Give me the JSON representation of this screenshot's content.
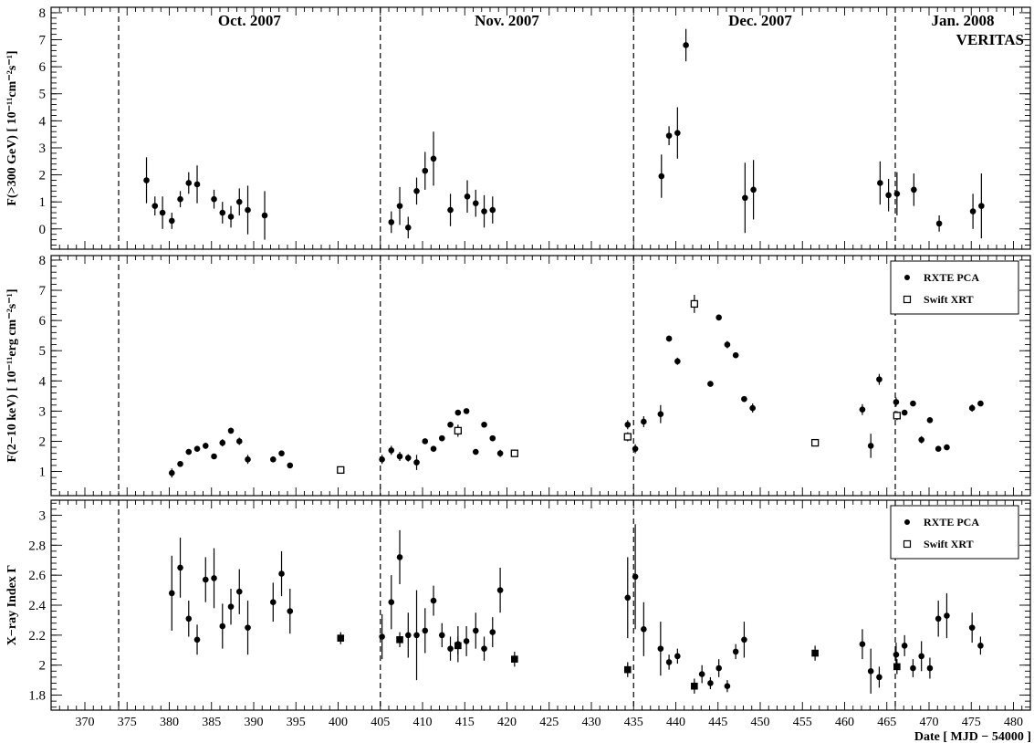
{
  "x_axis": {
    "label": "Date [ MJD − 54000 ]",
    "lim": [
      366,
      482
    ],
    "ticks": [
      370,
      375,
      380,
      385,
      390,
      395,
      400,
      405,
      410,
      415,
      420,
      425,
      430,
      435,
      440,
      445,
      450,
      455,
      460,
      465,
      470,
      475,
      480
    ]
  },
  "month_dividers": [
    374,
    405,
    435,
    466
  ],
  "month_labels": [
    {
      "text": "Oct. 2007",
      "x": 389.5
    },
    {
      "text": "Nov. 2007",
      "x": 420
    },
    {
      "text": "Dec. 2007",
      "x": 450
    },
    {
      "text": "Jan. 2008",
      "x": 474
    }
  ],
  "chart_data": [
    {
      "type": "scatter",
      "panel": "veritas",
      "ylabel": "F(>300 GeV) [ 10⁻¹¹cm⁻²s⁻¹]",
      "ylim": [
        -0.75,
        8.2
      ],
      "yticks": [
        0,
        1,
        2,
        3,
        4,
        5,
        6,
        7,
        8
      ],
      "annotation": "VERITAS",
      "series": [
        {
          "marker": "filled-circle",
          "points": [
            {
              "x": 377.3,
              "y": 1.8,
              "err": 0.85
            },
            {
              "x": 378.3,
              "y": 0.85,
              "err": 0.35
            },
            {
              "x": 379.2,
              "y": 0.6,
              "err": 0.6
            },
            {
              "x": 380.3,
              "y": 0.3,
              "err": 0.3
            },
            {
              "x": 381.3,
              "y": 1.1,
              "err": 0.3
            },
            {
              "x": 382.3,
              "y": 1.7,
              "err": 0.4
            },
            {
              "x": 383.3,
              "y": 1.65,
              "err": 0.7
            },
            {
              "x": 385.3,
              "y": 1.1,
              "err": 0.35
            },
            {
              "x": 386.3,
              "y": 0.6,
              "err": 0.4
            },
            {
              "x": 387.3,
              "y": 0.45,
              "err": 0.4
            },
            {
              "x": 388.3,
              "y": 1.0,
              "err": 0.5
            },
            {
              "x": 389.3,
              "y": 0.7,
              "err": 0.9
            },
            {
              "x": 391.3,
              "y": 0.5,
              "err": 0.9
            },
            {
              "x": 406.3,
              "y": 0.25,
              "err": 0.4
            },
            {
              "x": 407.3,
              "y": 0.85,
              "err": 0.7
            },
            {
              "x": 408.3,
              "y": 0.05,
              "err": 0.4
            },
            {
              "x": 409.3,
              "y": 1.4,
              "err": 0.5
            },
            {
              "x": 410.3,
              "y": 2.15,
              "err": 0.7
            },
            {
              "x": 411.3,
              "y": 2.6,
              "err": 1.0
            },
            {
              "x": 413.3,
              "y": 0.7,
              "err": 0.6
            },
            {
              "x": 415.3,
              "y": 1.2,
              "err": 0.6
            },
            {
              "x": 416.3,
              "y": 0.95,
              "err": 0.5
            },
            {
              "x": 417.3,
              "y": 0.65,
              "err": 0.6
            },
            {
              "x": 418.3,
              "y": 0.7,
              "err": 0.5
            },
            {
              "x": 438.3,
              "y": 1.95,
              "err": 0.8
            },
            {
              "x": 439.2,
              "y": 3.45,
              "err": 0.35
            },
            {
              "x": 440.2,
              "y": 3.55,
              "err": 0.95
            },
            {
              "x": 441.2,
              "y": 6.8,
              "err": 0.6
            },
            {
              "x": 448.2,
              "y": 1.15,
              "err": 1.3
            },
            {
              "x": 449.2,
              "y": 1.45,
              "err": 1.1
            },
            {
              "x": 464.2,
              "y": 1.7,
              "err": 0.8
            },
            {
              "x": 465.2,
              "y": 1.25,
              "err": 0.6
            },
            {
              "x": 466.2,
              "y": 1.3,
              "err": 0.8
            },
            {
              "x": 468.2,
              "y": 1.45,
              "err": 0.6
            },
            {
              "x": 471.2,
              "y": 0.2,
              "err": 0.3
            },
            {
              "x": 475.2,
              "y": 0.65,
              "err": 0.65
            },
            {
              "x": 476.2,
              "y": 0.85,
              "err": 1.2
            }
          ]
        }
      ]
    },
    {
      "type": "scatter",
      "panel": "xray-flux",
      "ylabel": "F(2−10 keV) [ 10⁻¹¹erg cm⁻²s⁻¹]",
      "ylim": [
        0.2,
        8.15
      ],
      "yticks": [
        1,
        2,
        3,
        4,
        5,
        6,
        7,
        8
      ],
      "legend": {
        "position": "top-right"
      },
      "series": [
        {
          "name": "RXTE PCA",
          "marker": "filled-circle",
          "points": [
            {
              "x": 380.3,
              "y": 0.95,
              "err": 0.15
            },
            {
              "x": 381.3,
              "y": 1.25,
              "err": 0.08
            },
            {
              "x": 382.3,
              "y": 1.65,
              "err": 0.08
            },
            {
              "x": 383.3,
              "y": 1.75,
              "err": 0.08
            },
            {
              "x": 384.3,
              "y": 1.85,
              "err": 0.1
            },
            {
              "x": 385.3,
              "y": 1.5,
              "err": 0.08
            },
            {
              "x": 386.3,
              "y": 1.95,
              "err": 0.12
            },
            {
              "x": 387.3,
              "y": 2.35,
              "err": 0.1
            },
            {
              "x": 388.3,
              "y": 2.0,
              "err": 0.12
            },
            {
              "x": 389.3,
              "y": 1.4,
              "err": 0.15
            },
            {
              "x": 392.3,
              "y": 1.4,
              "err": 0.08
            },
            {
              "x": 393.3,
              "y": 1.6,
              "err": 0.08
            },
            {
              "x": 394.3,
              "y": 1.2,
              "err": 0.08
            },
            {
              "x": 405.2,
              "y": 1.4,
              "err": 0.15
            },
            {
              "x": 406.3,
              "y": 1.7,
              "err": 0.15
            },
            {
              "x": 407.3,
              "y": 1.5,
              "err": 0.15
            },
            {
              "x": 408.3,
              "y": 1.45,
              "err": 0.12
            },
            {
              "x": 409.3,
              "y": 1.3,
              "err": 0.25
            },
            {
              "x": 410.3,
              "y": 2.0,
              "err": 0.08
            },
            {
              "x": 411.3,
              "y": 1.75,
              "err": 0.08
            },
            {
              "x": 412.3,
              "y": 2.1,
              "err": 0.08
            },
            {
              "x": 413.3,
              "y": 2.55,
              "err": 0.08
            },
            {
              "x": 414.2,
              "y": 2.95,
              "err": 0.08
            },
            {
              "x": 415.2,
              "y": 3.0,
              "err": 0.08
            },
            {
              "x": 416.3,
              "y": 1.65,
              "err": 0.08
            },
            {
              "x": 417.3,
              "y": 2.55,
              "err": 0.08
            },
            {
              "x": 418.3,
              "y": 2.1,
              "err": 0.08
            },
            {
              "x": 419.2,
              "y": 1.6,
              "err": 0.12
            },
            {
              "x": 434.3,
              "y": 2.55,
              "err": 0.15
            },
            {
              "x": 435.2,
              "y": 1.75,
              "err": 0.15
            },
            {
              "x": 436.2,
              "y": 2.65,
              "err": 0.18
            },
            {
              "x": 438.2,
              "y": 2.9,
              "err": 0.3
            },
            {
              "x": 439.2,
              "y": 5.4,
              "err": 0.1
            },
            {
              "x": 440.2,
              "y": 4.65,
              "err": 0.12
            },
            {
              "x": 444.1,
              "y": 3.9,
              "err": 0.08
            },
            {
              "x": 445.1,
              "y": 6.1,
              "err": 0.1
            },
            {
              "x": 446.1,
              "y": 5.2,
              "err": 0.12
            },
            {
              "x": 447.1,
              "y": 4.85,
              "err": 0.08
            },
            {
              "x": 448.1,
              "y": 3.4,
              "err": 0.08
            },
            {
              "x": 449.1,
              "y": 3.1,
              "err": 0.15
            },
            {
              "x": 462.1,
              "y": 3.05,
              "err": 0.18
            },
            {
              "x": 463.1,
              "y": 1.85,
              "err": 0.4
            },
            {
              "x": 464.1,
              "y": 4.05,
              "err": 0.18
            },
            {
              "x": 466.1,
              "y": 3.3,
              "err": 0.15
            },
            {
              "x": 467.1,
              "y": 2.95,
              "err": 0.08
            },
            {
              "x": 468.1,
              "y": 3.25,
              "err": 0.08
            },
            {
              "x": 469.1,
              "y": 2.05,
              "err": 0.12
            },
            {
              "x": 470.1,
              "y": 2.7,
              "err": 0.08
            },
            {
              "x": 471.1,
              "y": 1.75,
              "err": 0.08
            },
            {
              "x": 472.1,
              "y": 1.8,
              "err": 0.08
            },
            {
              "x": 475.1,
              "y": 3.1,
              "err": 0.12
            },
            {
              "x": 476.1,
              "y": 3.25,
              "err": 0.08
            }
          ]
        },
        {
          "name": "Swift XRT",
          "marker": "open-square",
          "points": [
            {
              "x": 400.3,
              "y": 1.05,
              "err": 0.08
            },
            {
              "x": 414.2,
              "y": 2.35,
              "err": 0.2
            },
            {
              "x": 420.9,
              "y": 1.6,
              "err": 0.08
            },
            {
              "x": 434.3,
              "y": 2.15,
              "err": 0.15
            },
            {
              "x": 442.2,
              "y": 6.55,
              "err": 0.3
            },
            {
              "x": 456.5,
              "y": 1.95,
              "err": 0.08
            },
            {
              "x": 466.2,
              "y": 2.85,
              "err": 0.15
            }
          ]
        }
      ]
    },
    {
      "type": "scatter",
      "panel": "xray-index",
      "ylabel": "X−ray Index Γ",
      "ylim": [
        1.7,
        3.1
      ],
      "yticks": [
        1.8,
        2,
        2.2,
        2.4,
        2.6,
        2.8,
        3
      ],
      "legend": {
        "position": "top-right"
      },
      "series": [
        {
          "name": "RXTE PCA",
          "marker": "filled-circle",
          "points": [
            {
              "x": 380.3,
              "y": 2.48,
              "err": 0.25
            },
            {
              "x": 381.3,
              "y": 2.65,
              "err": 0.2
            },
            {
              "x": 382.3,
              "y": 2.31,
              "err": 0.12
            },
            {
              "x": 383.3,
              "y": 2.17,
              "err": 0.1
            },
            {
              "x": 384.3,
              "y": 2.57,
              "err": 0.15
            },
            {
              "x": 385.3,
              "y": 2.58,
              "err": 0.2
            },
            {
              "x": 386.3,
              "y": 2.26,
              "err": 0.15
            },
            {
              "x": 387.3,
              "y": 2.39,
              "err": 0.12
            },
            {
              "x": 388.3,
              "y": 2.49,
              "err": 0.15
            },
            {
              "x": 389.3,
              "y": 2.25,
              "err": 0.18
            },
            {
              "x": 392.3,
              "y": 2.42,
              "err": 0.13
            },
            {
              "x": 393.3,
              "y": 2.61,
              "err": 0.15
            },
            {
              "x": 394.3,
              "y": 2.36,
              "err": 0.15
            },
            {
              "x": 405.2,
              "y": 2.19,
              "err": 0.15
            },
            {
              "x": 406.3,
              "y": 2.42,
              "err": 0.18
            },
            {
              "x": 407.3,
              "y": 2.72,
              "err": 0.18
            },
            {
              "x": 408.3,
              "y": 2.2,
              "err": 0.15
            },
            {
              "x": 409.3,
              "y": 2.2,
              "err": 0.3
            },
            {
              "x": 410.3,
              "y": 2.23,
              "err": 0.15
            },
            {
              "x": 411.3,
              "y": 2.43,
              "err": 0.1
            },
            {
              "x": 412.3,
              "y": 2.2,
              "err": 0.08
            },
            {
              "x": 413.3,
              "y": 2.11,
              "err": 0.08
            },
            {
              "x": 414.2,
              "y": 2.14,
              "err": 0.12
            },
            {
              "x": 415.2,
              "y": 2.16,
              "err": 0.1
            },
            {
              "x": 416.3,
              "y": 2.23,
              "err": 0.12
            },
            {
              "x": 417.3,
              "y": 2.11,
              "err": 0.08
            },
            {
              "x": 418.3,
              "y": 2.22,
              "err": 0.1
            },
            {
              "x": 419.2,
              "y": 2.5,
              "err": 0.15
            },
            {
              "x": 434.3,
              "y": 2.45,
              "err": 0.27
            },
            {
              "x": 435.2,
              "y": 2.59,
              "err": 0.35
            },
            {
              "x": 436.2,
              "y": 2.24,
              "err": 0.18
            },
            {
              "x": 438.2,
              "y": 2.11,
              "err": 0.18
            },
            {
              "x": 439.2,
              "y": 2.02,
              "err": 0.05
            },
            {
              "x": 440.2,
              "y": 2.06,
              "err": 0.05
            },
            {
              "x": 443.1,
              "y": 1.94,
              "err": 0.06
            },
            {
              "x": 444.1,
              "y": 1.88,
              "err": 0.04
            },
            {
              "x": 445.1,
              "y": 1.98,
              "err": 0.06
            },
            {
              "x": 446.1,
              "y": 1.86,
              "err": 0.04
            },
            {
              "x": 447.1,
              "y": 2.09,
              "err": 0.05
            },
            {
              "x": 448.1,
              "y": 2.17,
              "err": 0.12
            },
            {
              "x": 462.1,
              "y": 2.14,
              "err": 0.1
            },
            {
              "x": 463.1,
              "y": 1.96,
              "err": 0.15
            },
            {
              "x": 464.1,
              "y": 1.92,
              "err": 0.07
            },
            {
              "x": 466.1,
              "y": 2.07,
              "err": 0.08
            },
            {
              "x": 467.1,
              "y": 2.13,
              "err": 0.07
            },
            {
              "x": 468.1,
              "y": 1.98,
              "err": 0.06
            },
            {
              "x": 469.1,
              "y": 2.06,
              "err": 0.1
            },
            {
              "x": 470.1,
              "y": 1.98,
              "err": 0.07
            },
            {
              "x": 471.1,
              "y": 2.31,
              "err": 0.12
            },
            {
              "x": 472.1,
              "y": 2.33,
              "err": 0.15
            },
            {
              "x": 475.1,
              "y": 2.25,
              "err": 0.1
            },
            {
              "x": 476.1,
              "y": 2.13,
              "err": 0.06
            }
          ]
        },
        {
          "name": "Swift XRT",
          "marker": "filled-square",
          "points": [
            {
              "x": 400.3,
              "y": 2.18,
              "err": 0.04
            },
            {
              "x": 407.3,
              "y": 2.17,
              "err": 0.05
            },
            {
              "x": 414.2,
              "y": 2.13,
              "err": 0.06
            },
            {
              "x": 420.9,
              "y": 2.04,
              "err": 0.05
            },
            {
              "x": 434.3,
              "y": 1.97,
              "err": 0.05
            },
            {
              "x": 442.2,
              "y": 1.86,
              "err": 0.05
            },
            {
              "x": 456.5,
              "y": 2.08,
              "err": 0.05
            },
            {
              "x": 466.2,
              "y": 1.99,
              "err": 0.05
            }
          ]
        }
      ]
    }
  ]
}
